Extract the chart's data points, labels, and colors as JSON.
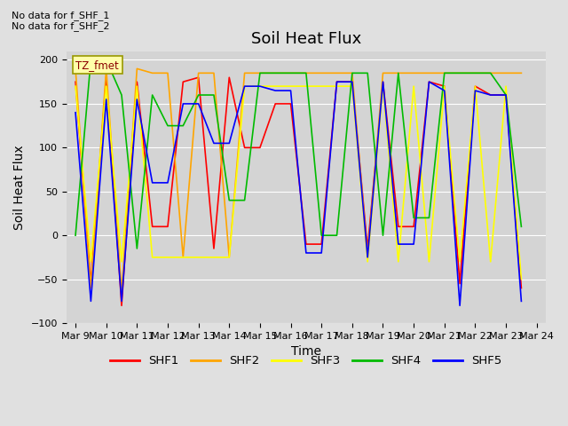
{
  "title": "Soil Heat Flux",
  "ylabel": "Soil Heat Flux",
  "xlabel": "Time",
  "annotation_text": "TZ_fmet",
  "note1": "No data for f_SHF_1",
  "note2": "No data for f_SHF_2",
  "ylim": [
    -100,
    210
  ],
  "yticks": [
    -100,
    -50,
    0,
    50,
    100,
    150,
    200
  ],
  "series": {
    "SHF1": {
      "color": "#ff0000",
      "x": [
        0,
        0.5,
        1,
        1.5,
        2,
        2.5,
        3,
        3.5,
        4,
        4.5,
        5,
        5.5,
        6,
        6.5,
        7,
        7.5,
        8,
        8.5,
        9,
        9.5,
        10,
        10.5,
        11,
        11.5,
        12,
        12.5,
        13,
        13.5,
        14,
        14.5
      ],
      "y": [
        175,
        -55,
        180,
        -80,
        175,
        10,
        10,
        175,
        180,
        -15,
        180,
        100,
        100,
        150,
        150,
        -10,
        -10,
        175,
        175,
        -15,
        175,
        10,
        10,
        175,
        170,
        -55,
        170,
        160,
        160,
        -60
      ]
    },
    "SHF2": {
      "color": "#ffa500",
      "x": [
        0,
        0.5,
        1,
        1.5,
        2,
        2.5,
        3,
        3.5,
        4,
        4.5,
        5,
        5.5,
        6,
        6.5,
        7,
        7.5,
        8,
        8.5,
        9,
        9.5,
        10,
        10.5,
        11,
        11.5,
        12,
        12.5,
        13,
        13.5,
        14,
        14.5
      ],
      "y": [
        190,
        -60,
        190,
        -65,
        190,
        185,
        185,
        -25,
        185,
        185,
        -25,
        185,
        185,
        185,
        185,
        185,
        185,
        185,
        185,
        -25,
        185,
        185,
        185,
        185,
        185,
        185,
        185,
        185,
        185,
        185
      ]
    },
    "SHF3": {
      "color": "#ffff00",
      "x": [
        0,
        0.5,
        1,
        1.5,
        2,
        2.5,
        3,
        3.5,
        4,
        4.5,
        5,
        5.5,
        6,
        6.5,
        7,
        7.5,
        8,
        8.5,
        9,
        9.5,
        10,
        10.5,
        11,
        11.5,
        12,
        12.5,
        13,
        13.5,
        14,
        14.5
      ],
      "y": [
        170,
        -30,
        170,
        -30,
        170,
        -25,
        -25,
        -25,
        -25,
        -25,
        -25,
        170,
        170,
        170,
        170,
        170,
        170,
        170,
        170,
        -30,
        170,
        -30,
        170,
        -30,
        170,
        -30,
        170,
        -30,
        170,
        -50
      ]
    },
    "SHF4": {
      "color": "#00bb00",
      "x": [
        0,
        0.5,
        1,
        1.5,
        2,
        2.5,
        3,
        3.5,
        4,
        4.5,
        5,
        5.5,
        6,
        6.5,
        7,
        7.5,
        8,
        8.5,
        9,
        9.5,
        10,
        10.5,
        11,
        11.5,
        12,
        12.5,
        13,
        13.5,
        14,
        14.5
      ],
      "y": [
        0,
        200,
        200,
        160,
        -15,
        160,
        125,
        125,
        160,
        160,
        40,
        40,
        185,
        185,
        185,
        185,
        0,
        0,
        185,
        185,
        0,
        185,
        20,
        20,
        185,
        185,
        185,
        185,
        160,
        10
      ]
    },
    "SHF5": {
      "color": "#0000ff",
      "x": [
        0,
        0.5,
        1,
        1.5,
        2,
        2.5,
        3,
        3.5,
        4,
        4.5,
        5,
        5.5,
        6,
        6.5,
        7,
        7.5,
        8,
        8.5,
        9,
        9.5,
        10,
        10.5,
        11,
        11.5,
        12,
        12.5,
        13,
        13.5,
        14,
        14.5
      ],
      "y": [
        140,
        -75,
        155,
        -75,
        155,
        60,
        60,
        150,
        150,
        105,
        105,
        170,
        170,
        165,
        165,
        -20,
        -20,
        175,
        175,
        -25,
        175,
        -10,
        -10,
        175,
        165,
        -80,
        165,
        160,
        160,
        -75
      ]
    }
  },
  "legend_order": [
    "SHF1",
    "SHF2",
    "SHF3",
    "SHF4",
    "SHF5"
  ],
  "background_color": "#e0e0e0",
  "plot_bg_color": "#d4d4d4",
  "grid_color": "#ffffff",
  "title_fontsize": 13,
  "axis_fontsize": 10,
  "tick_fontsize": 8,
  "xtick_labels": [
    "Mar 9",
    "Mar 10",
    "Mar 11",
    "Mar 12",
    "Mar 13",
    "Mar 14",
    "Mar 15",
    "Mar 16",
    "Mar 17",
    "Mar 18",
    "Mar 19",
    "Mar 20",
    "Mar 21",
    "Mar 22",
    "Mar 23",
    "Mar 24"
  ],
  "xtick_positions": [
    0,
    1,
    2,
    3,
    4,
    5,
    6,
    7,
    8,
    9,
    10,
    11,
    12,
    13,
    14,
    15
  ]
}
